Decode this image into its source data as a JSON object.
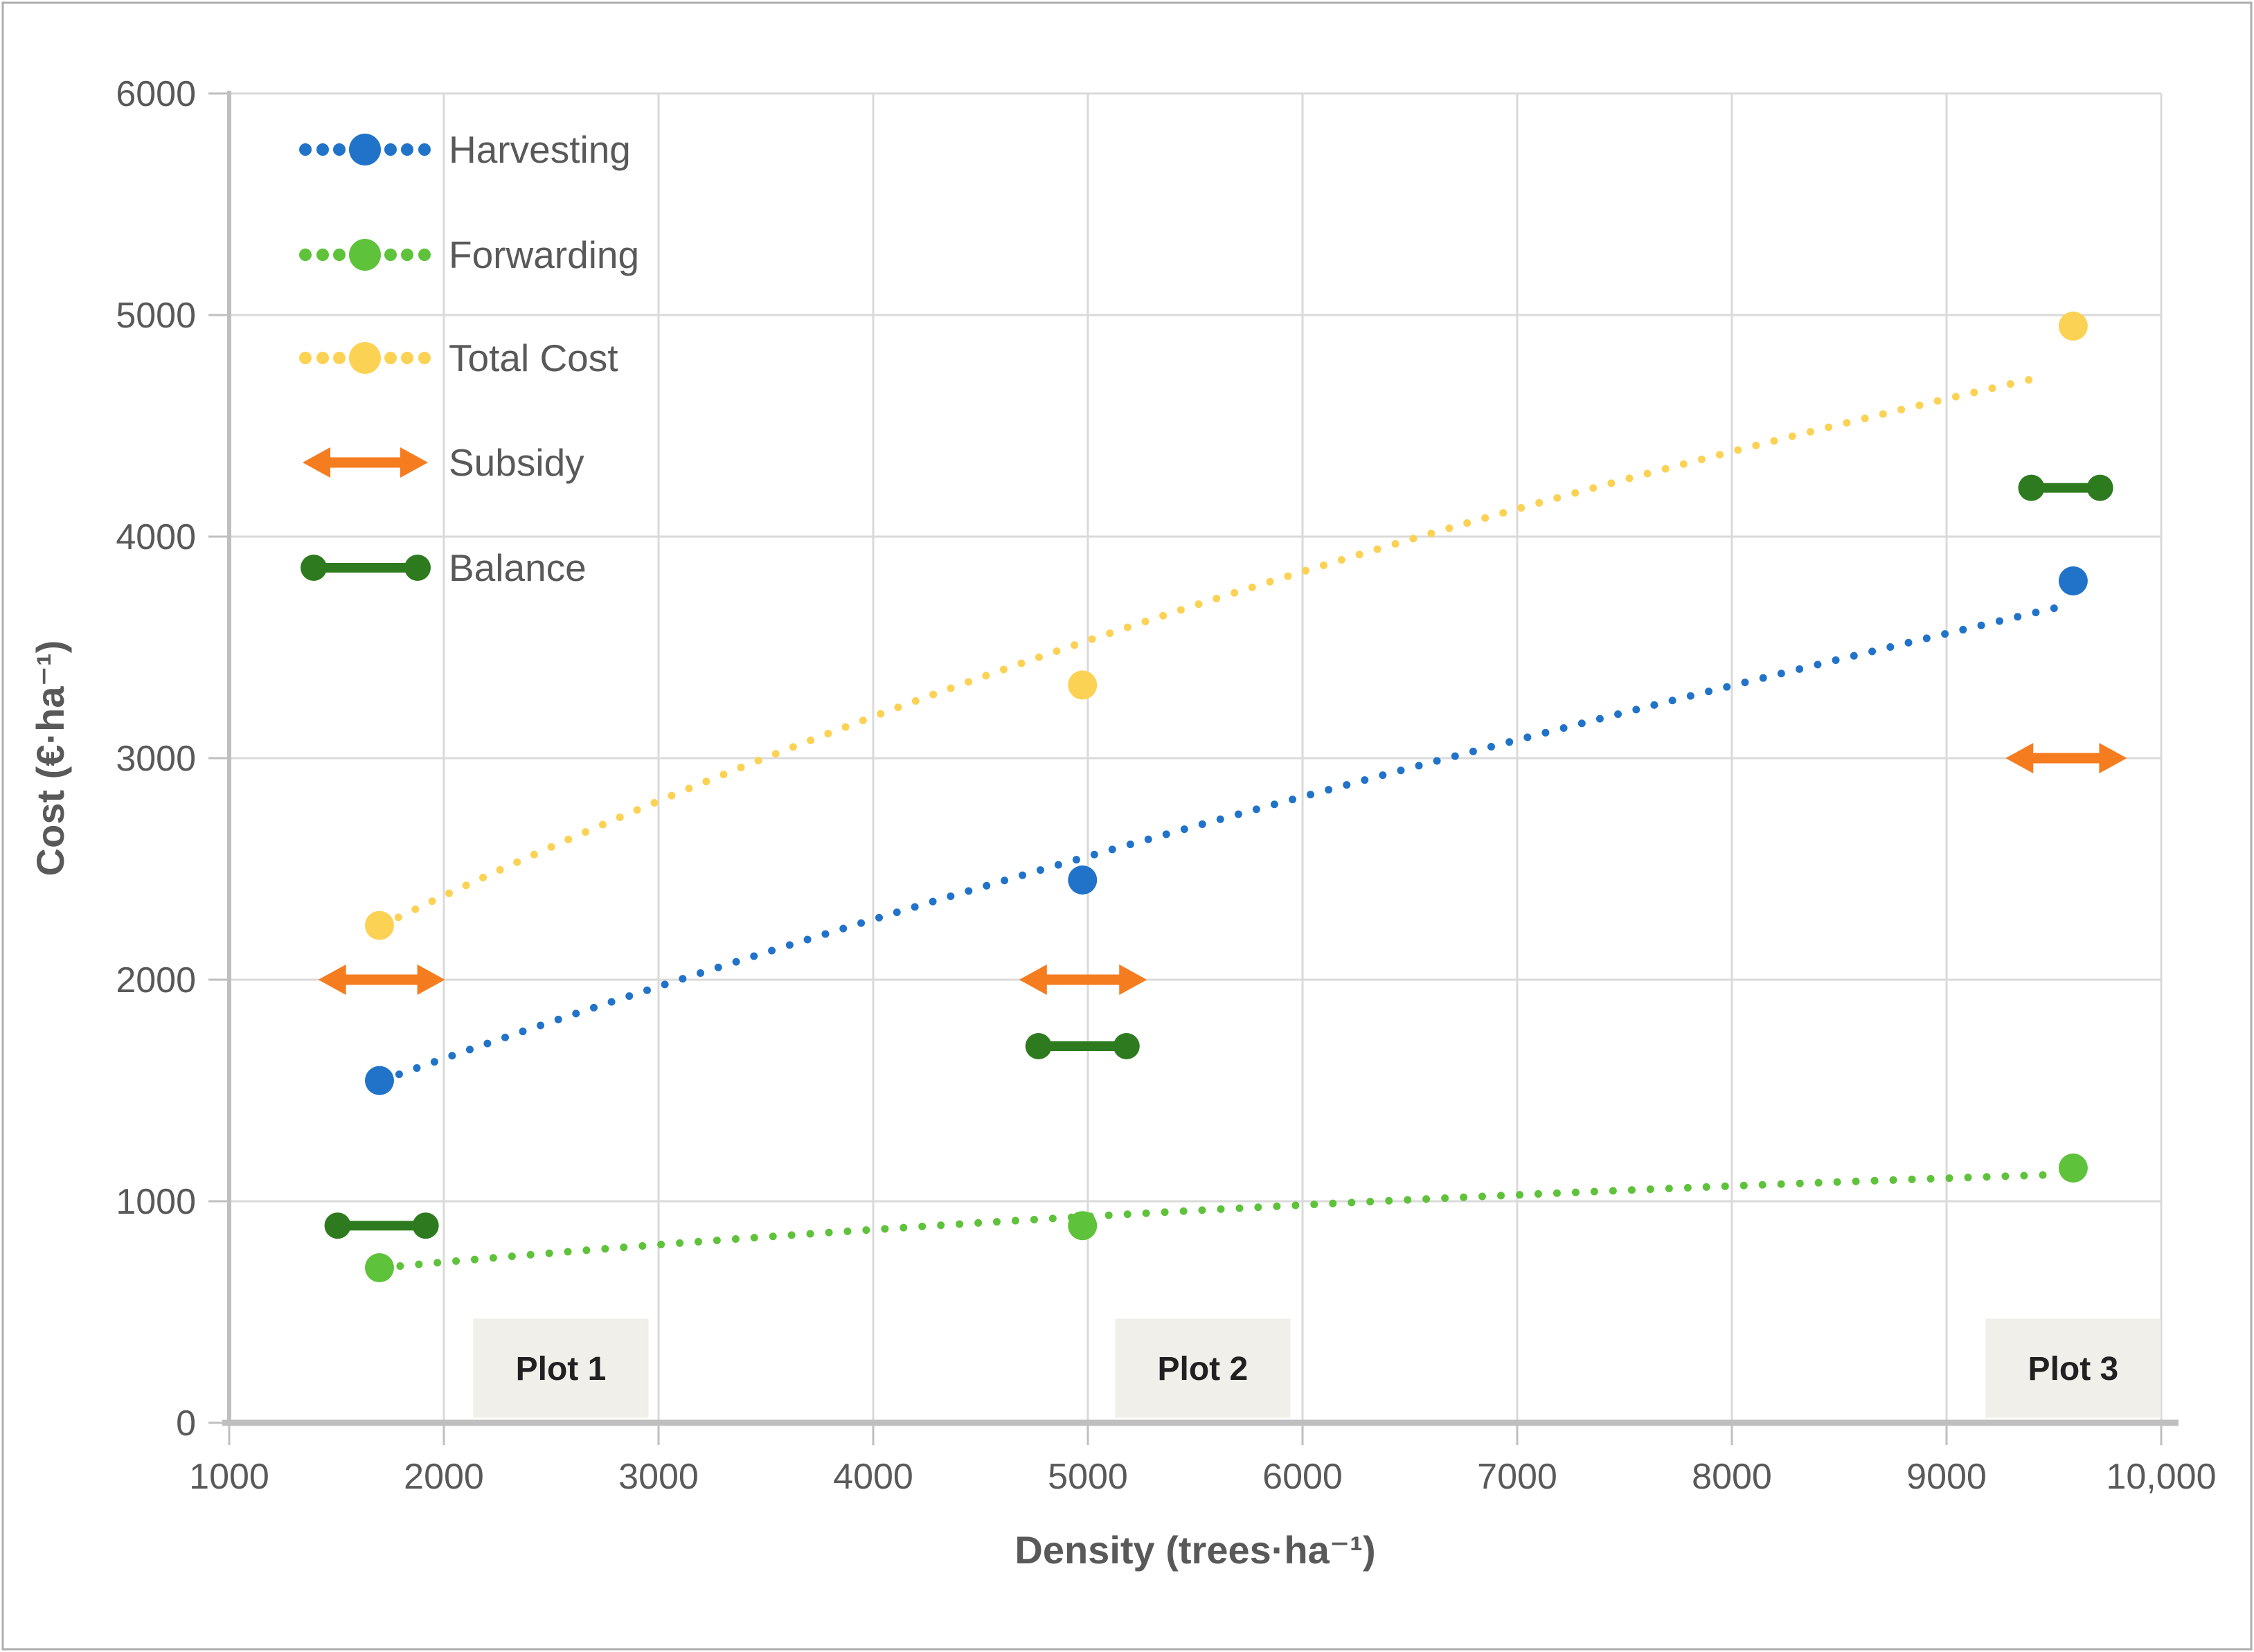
{
  "figure": {
    "background": "#ffffff",
    "border_color": "#aeaeae"
  },
  "colors": {
    "harvesting": "#2173C9",
    "forwarding": "#5EC23A",
    "total_cost": "#FCD254",
    "subsidy": "#F57C1F",
    "balance": "#2E7B1F",
    "gridline": "#DADADA",
    "axis_line": "#BFBFBF",
    "tick_text": "#595959",
    "axis_title_text": "#595959",
    "legend_text": "#595959",
    "plot_label_bg": "#F0EFEA",
    "plot_label_text": "#212121"
  },
  "chart_data": {
    "type": "scatter",
    "title": "",
    "xlabel": "Density (trees·ha⁻¹)",
    "ylabel": "Cost (€·ha⁻¹)",
    "xlim": [
      1000,
      10000
    ],
    "ylim": [
      0,
      6000
    ],
    "grid": true,
    "legend_position": "top-left-inside",
    "x_ticks": [
      1000,
      2000,
      3000,
      4000,
      5000,
      6000,
      7000,
      8000,
      9000,
      10000
    ],
    "x_tick_labels": [
      "1000",
      "2000",
      "3000",
      "4000",
      "5000",
      "6000",
      "7000",
      "8000",
      "9000",
      "10,000"
    ],
    "y_ticks": [
      0,
      1000,
      2000,
      3000,
      4000,
      5000,
      6000
    ],
    "y_tick_labels": [
      "0",
      "1000",
      "2000",
      "3000",
      "4000",
      "5000",
      "6000"
    ],
    "categories": [
      "Plot 1",
      "Plot 2",
      "Plot 3"
    ],
    "densities": [
      1700,
      4975,
      9590
    ],
    "series": [
      {
        "name": "Harvesting",
        "kind": "dotted-scatter",
        "color_key": "harvesting",
        "points": [
          {
            "x": 1700,
            "y": 1545
          },
          {
            "x": 4975,
            "y": 2450
          },
          {
            "x": 9590,
            "y": 3800
          }
        ],
        "trend": {
          "start": [
            1710,
            1545
          ],
          "control": [
            4800,
            2615
          ],
          "end": [
            9560,
            3690
          ]
        }
      },
      {
        "name": "Forwarding",
        "kind": "dotted-scatter",
        "color_key": "forwarding",
        "points": [
          {
            "x": 1700,
            "y": 700
          },
          {
            "x": 4975,
            "y": 890
          },
          {
            "x": 9590,
            "y": 1150
          }
        ],
        "trend": {
          "start": [
            1710,
            700
          ],
          "control": [
            4800,
            975
          ],
          "end": [
            9500,
            1120
          ]
        }
      },
      {
        "name": "Total Cost",
        "kind": "dotted-scatter",
        "color_key": "total_cost",
        "points": [
          {
            "x": 1700,
            "y": 2245
          },
          {
            "x": 4975,
            "y": 3330
          },
          {
            "x": 9590,
            "y": 4950
          }
        ],
        "trend": {
          "start": [
            1710,
            2245
          ],
          "control": [
            4800,
            3700
          ],
          "end": [
            9440,
            4720
          ]
        }
      },
      {
        "name": "Subsidy",
        "kind": "range-arrow",
        "color_key": "subsidy",
        "segments": [
          {
            "y": 2000,
            "x1": 1415,
            "x2": 2005
          },
          {
            "y": 2000,
            "x1": 4680,
            "x2": 5275
          },
          {
            "y": 3000,
            "x1": 9275,
            "x2": 9840
          }
        ]
      },
      {
        "name": "Balance",
        "kind": "range-bar",
        "color_key": "balance",
        "segments": [
          {
            "y": 890,
            "x1": 1505,
            "x2": 1915
          },
          {
            "y": 1700,
            "x1": 4770,
            "x2": 5180
          },
          {
            "y": 4220,
            "x1": 9395,
            "x2": 9715
          }
        ]
      }
    ],
    "annotations": [
      {
        "label": "Plot 1",
        "x": 2545
      },
      {
        "label": "Plot 2",
        "x": 5535
      },
      {
        "label": "Plot 3",
        "x": 9590
      }
    ]
  }
}
